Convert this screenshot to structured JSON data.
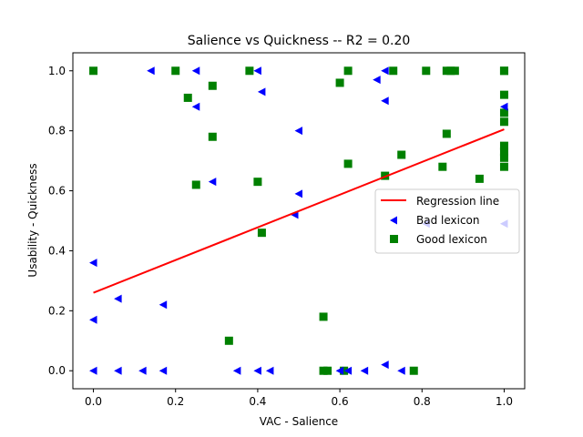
{
  "chart_data": {
    "type": "scatter",
    "title": "Salience  vs  Quickness -- R2 = 0.20",
    "xlabel": "VAC - Salience",
    "ylabel": "Usability - Quickness",
    "xlim": [
      -0.05,
      1.05
    ],
    "ylim": [
      -0.06,
      1.06
    ],
    "xticks": [
      0.0,
      0.2,
      0.4,
      0.6,
      0.8,
      1.0
    ],
    "xtick_labels": [
      "0.0",
      "0.2",
      "0.4",
      "0.6",
      "0.8",
      "1.0"
    ],
    "yticks": [
      0.0,
      0.2,
      0.4,
      0.6,
      0.8,
      1.0
    ],
    "ytick_labels": [
      "0.0",
      "0.2",
      "0.4",
      "0.6",
      "0.8",
      "1.0"
    ],
    "grid": false,
    "legend_position": "center-right",
    "regression": {
      "name": "Regression line",
      "color": "#ff0000",
      "x": [
        0.0,
        1.0
      ],
      "y": [
        0.26,
        0.805
      ]
    },
    "series": [
      {
        "name": "Bad lexicon",
        "marker": "triangle-left",
        "color": "#0000ff",
        "points": [
          [
            0.0,
            0.36
          ],
          [
            0.0,
            0.17
          ],
          [
            0.0,
            0.0
          ],
          [
            0.06,
            0.24
          ],
          [
            0.06,
            0.0
          ],
          [
            0.12,
            0.0
          ],
          [
            0.14,
            1.0
          ],
          [
            0.17,
            0.22
          ],
          [
            0.17,
            0.0
          ],
          [
            0.25,
            1.0
          ],
          [
            0.25,
            0.88
          ],
          [
            0.29,
            0.63
          ],
          [
            0.35,
            0.0
          ],
          [
            0.4,
            1.0
          ],
          [
            0.4,
            0.0
          ],
          [
            0.41,
            0.93
          ],
          [
            0.43,
            0.0
          ],
          [
            0.49,
            0.52
          ],
          [
            0.5,
            0.8
          ],
          [
            0.5,
            0.59
          ],
          [
            0.6,
            0.0
          ],
          [
            0.62,
            0.0
          ],
          [
            0.66,
            0.0
          ],
          [
            0.69,
            0.97
          ],
          [
            0.71,
            1.0
          ],
          [
            0.71,
            0.9
          ],
          [
            0.71,
            0.02
          ],
          [
            0.75,
            0.0
          ],
          [
            0.81,
            0.49
          ],
          [
            1.0,
            0.88
          ],
          [
            1.0,
            0.49
          ]
        ]
      },
      {
        "name": "Good lexicon",
        "marker": "square",
        "color": "#008000",
        "points": [
          [
            0.0,
            1.0
          ],
          [
            0.2,
            1.0
          ],
          [
            0.23,
            0.91
          ],
          [
            0.25,
            0.62
          ],
          [
            0.29,
            0.95
          ],
          [
            0.29,
            0.78
          ],
          [
            0.33,
            0.1
          ],
          [
            0.38,
            1.0
          ],
          [
            0.4,
            0.63
          ],
          [
            0.41,
            0.46
          ],
          [
            0.56,
            0.18
          ],
          [
            0.56,
            0.0
          ],
          [
            0.57,
            0.0
          ],
          [
            0.6,
            0.96
          ],
          [
            0.61,
            0.0
          ],
          [
            0.62,
            1.0
          ],
          [
            0.62,
            0.69
          ],
          [
            0.71,
            0.65
          ],
          [
            0.73,
            1.0
          ],
          [
            0.75,
            0.72
          ],
          [
            0.78,
            0.0
          ],
          [
            0.81,
            1.0
          ],
          [
            0.85,
            0.68
          ],
          [
            0.86,
            1.0
          ],
          [
            0.86,
            0.79
          ],
          [
            0.87,
            1.0
          ],
          [
            0.88,
            1.0
          ],
          [
            0.94,
            0.64
          ],
          [
            1.0,
            1.0
          ],
          [
            1.0,
            1.0
          ],
          [
            1.0,
            0.92
          ],
          [
            1.0,
            0.86
          ],
          [
            1.0,
            0.83
          ],
          [
            1.0,
            0.75
          ],
          [
            1.0,
            0.73
          ],
          [
            1.0,
            0.71
          ],
          [
            1.0,
            0.68
          ]
        ]
      }
    ]
  }
}
